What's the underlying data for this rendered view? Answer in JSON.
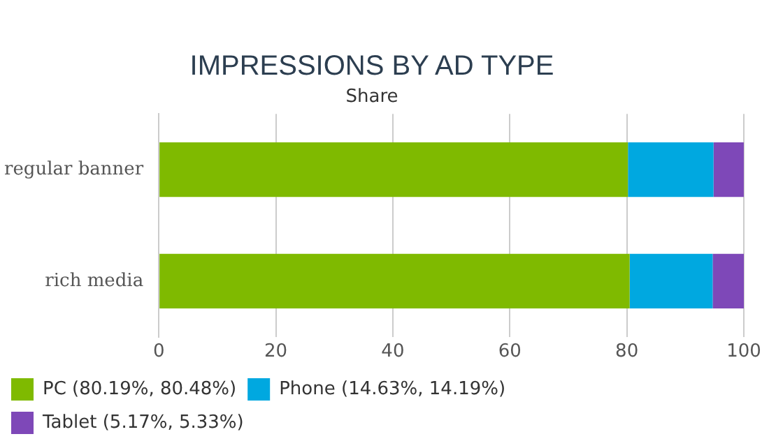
{
  "chart_data": {
    "type": "bar",
    "orientation": "horizontal",
    "stacked": true,
    "title": "IMPRESSIONS BY AD TYPE",
    "subtitle": "Share",
    "categories": [
      "regular banner",
      "rich media"
    ],
    "series": [
      {
        "name": "PC (80.19%, 80.48%)",
        "color": "#7fba00",
        "values": [
          80.19,
          80.48
        ]
      },
      {
        "name": "Phone (14.63%, 14.19%)",
        "color": "#00a8e0",
        "values": [
          14.63,
          14.19
        ]
      },
      {
        "name": "Tablet (5.17%, 5.33%)",
        "color": "#7e48b8",
        "values": [
          5.17,
          5.33
        ]
      }
    ],
    "xlim": [
      0,
      100
    ],
    "xticks": [
      0,
      20,
      40,
      60,
      80,
      100
    ],
    "grid": "x",
    "legend": "bottom"
  }
}
